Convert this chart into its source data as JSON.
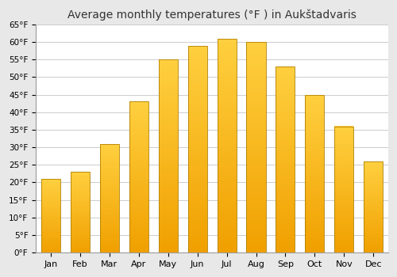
{
  "title": "Average monthly temperatures (°F ) in Aukštadvaris",
  "months": [
    "Jan",
    "Feb",
    "Mar",
    "Apr",
    "May",
    "Jun",
    "Jul",
    "Aug",
    "Sep",
    "Oct",
    "Nov",
    "Dec"
  ],
  "values": [
    21,
    23,
    31,
    43,
    55,
    59,
    61,
    60,
    53,
    45,
    36,
    26
  ],
  "ylim": [
    0,
    65
  ],
  "yticks": [
    0,
    5,
    10,
    15,
    20,
    25,
    30,
    35,
    40,
    45,
    50,
    55,
    60,
    65
  ],
  "bar_color_bottom": "#F0A000",
  "bar_color_top": "#FFD040",
  "bar_edge_color": "#B08000",
  "background_color": "#e8e8e8",
  "plot_bg_color": "#ffffff",
  "grid_color": "#cccccc",
  "title_fontsize": 10,
  "bar_width": 0.65,
  "n_gradient_steps": 50
}
